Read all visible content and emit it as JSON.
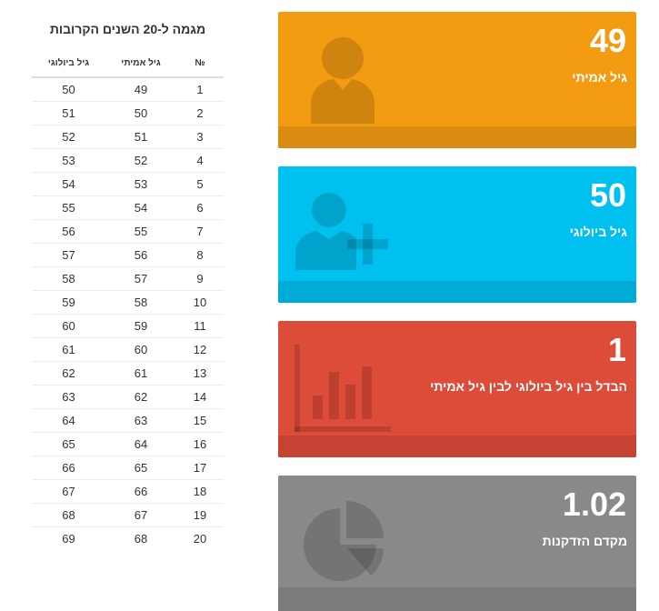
{
  "table": {
    "title": "מגמה ל-20 השנים הקרובות",
    "headers": {
      "num": "№",
      "real_age": "גיל אמיתי",
      "bio_age": "גיל ביולוגי"
    },
    "rows": [
      {
        "num": "1",
        "real": "49",
        "bio": "50"
      },
      {
        "num": "2",
        "real": "50",
        "bio": "51"
      },
      {
        "num": "3",
        "real": "51",
        "bio": "52"
      },
      {
        "num": "4",
        "real": "52",
        "bio": "53"
      },
      {
        "num": "5",
        "real": "53",
        "bio": "54"
      },
      {
        "num": "6",
        "real": "54",
        "bio": "55"
      },
      {
        "num": "7",
        "real": "55",
        "bio": "56"
      },
      {
        "num": "8",
        "real": "56",
        "bio": "57"
      },
      {
        "num": "9",
        "real": "57",
        "bio": "58"
      },
      {
        "num": "10",
        "real": "58",
        "bio": "59"
      },
      {
        "num": "11",
        "real": "59",
        "bio": "60"
      },
      {
        "num": "12",
        "real": "60",
        "bio": "61"
      },
      {
        "num": "13",
        "real": "61",
        "bio": "62"
      },
      {
        "num": "14",
        "real": "62",
        "bio": "63"
      },
      {
        "num": "15",
        "real": "63",
        "bio": "64"
      },
      {
        "num": "16",
        "real": "64",
        "bio": "65"
      },
      {
        "num": "17",
        "real": "65",
        "bio": "66"
      },
      {
        "num": "18",
        "real": "66",
        "bio": "67"
      },
      {
        "num": "19",
        "real": "67",
        "bio": "68"
      },
      {
        "num": "20",
        "real": "68",
        "bio": "69"
      }
    ]
  },
  "cards": {
    "real_age": {
      "value": "49",
      "label": "גיל אמיתי",
      "color": "#f39c12",
      "icon": "user-icon"
    },
    "bio_age": {
      "value": "50",
      "label": "גיל ביולוגי",
      "color": "#00c0ef",
      "icon": "user-plus-icon"
    },
    "difference": {
      "value": "1",
      "label": "הבדל בין גיל ביולוגי לבין גיל אמיתי",
      "color": "#dd4b39",
      "icon": "bar-chart-icon"
    },
    "aging_rate": {
      "value": "1.02",
      "label": "מקדם הזדקנות",
      "color": "#898989",
      "icon": "pie-chart-icon"
    }
  }
}
